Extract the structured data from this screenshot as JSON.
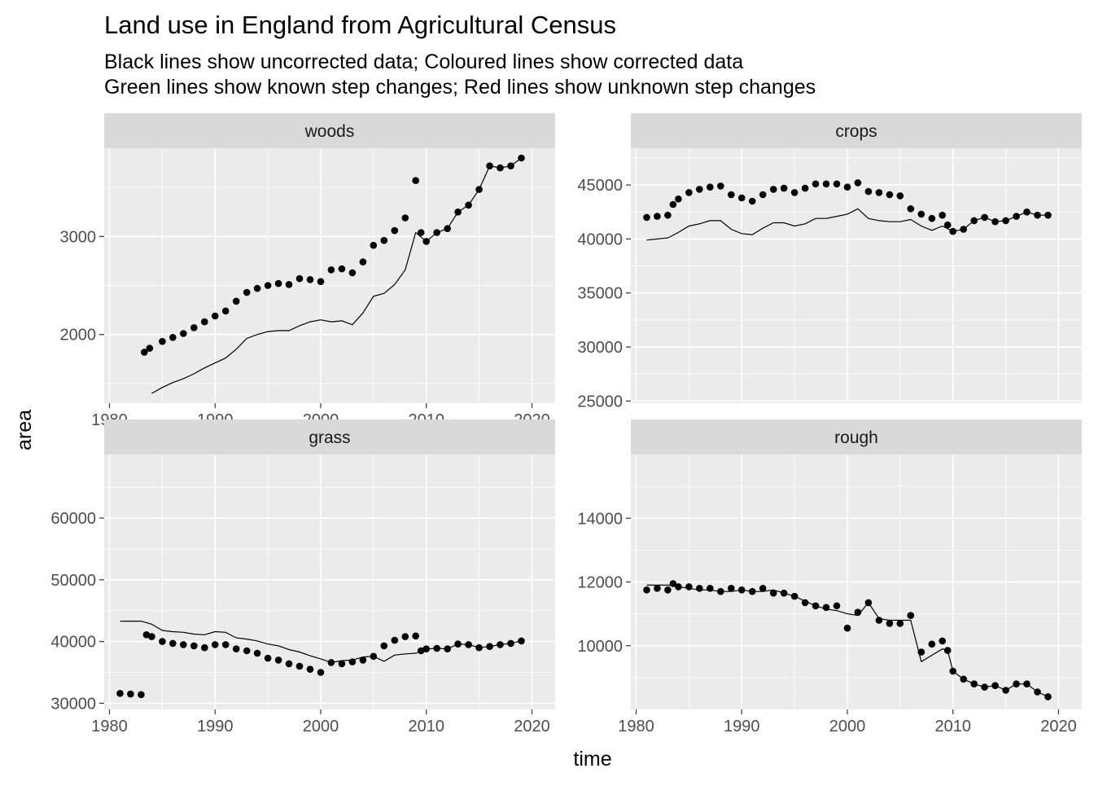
{
  "chart_data": {
    "type": "scatter",
    "title": "Land use in England from Agricultural Census",
    "subtitle_lines": [
      "Black lines show uncorrected data; Coloured lines show corrected data",
      "Green lines show known step changes; Red lines show unknown step changes"
    ],
    "xlabel": "time",
    "ylabel": "area",
    "xlim": [
      1979.5,
      2022.2
    ],
    "x_ticks": [
      1980,
      1990,
      2000,
      2010,
      2020
    ],
    "grid": true,
    "facets": [
      {
        "label": "woods",
        "ylim": [
          1300,
          3900
        ],
        "y_ticks": [
          2000,
          3000
        ],
        "series": [
          {
            "style": "points",
            "x": [
              1983.3,
              1983.8,
              1985,
              1986,
              1987,
              1988,
              1989,
              1990,
              1991,
              1992,
              1993,
              1994,
              1995,
              1996,
              1997,
              1998,
              1999,
              2000,
              2001,
              2002,
              2003,
              2004,
              2005,
              2006,
              2007,
              2008,
              2009,
              2009.5,
              2010,
              2011,
              2012,
              2013,
              2014,
              2015,
              2016,
              2017,
              2018,
              2019
            ],
            "y": [
              1820,
              1860,
              1930,
              1970,
              2010,
              2070,
              2130,
              2190,
              2240,
              2340,
              2430,
              2470,
              2500,
              2520,
              2510,
              2570,
              2560,
              2540,
              2660,
              2670,
              2630,
              2740,
              2910,
              2960,
              3060,
              3190,
              3570,
              3040,
              2950,
              3040,
              3080,
              3250,
              3320,
              3480,
              3720,
              3700,
              3720,
              3800
            ]
          },
          {
            "style": "line",
            "x": [
              1984,
              1985,
              1986,
              1987,
              1988,
              1989,
              1990,
              1991,
              1992,
              1993,
              1994,
              1995,
              1996,
              1997,
              1998,
              1999,
              2000,
              2001,
              2002,
              2003,
              2004,
              2005,
              2006,
              2007,
              2008,
              2009,
              2010,
              2011,
              2012,
              2013,
              2014,
              2015,
              2016,
              2017,
              2018,
              2019
            ],
            "y": [
              1400,
              1460,
              1510,
              1550,
              1600,
              1660,
              1710,
              1760,
              1850,
              1960,
              2000,
              2030,
              2040,
              2040,
              2090,
              2130,
              2150,
              2130,
              2140,
              2100,
              2220,
              2390,
              2420,
              2510,
              2660,
              3040,
              2950,
              3040,
              3080,
              3250,
              3320,
              3480,
              3720,
              3700,
              3720,
              3800
            ]
          }
        ]
      },
      {
        "label": "crops",
        "ylim": [
          24800,
          48400
        ],
        "y_ticks": [
          25000,
          30000,
          35000,
          40000,
          45000
        ],
        "series": [
          {
            "style": "points",
            "x": [
              1981,
              1982,
              1983,
              1983.5,
              1984,
              1985,
              1986,
              1987,
              1988,
              1989,
              1990,
              1991,
              1992,
              1993,
              1994,
              1995,
              1996,
              1997,
              1998,
              1999,
              2000,
              2001,
              2002,
              2003,
              2004,
              2005,
              2006,
              2007,
              2008,
              2009,
              2009.5,
              2010,
              2011,
              2012,
              2013,
              2014,
              2015,
              2016,
              2017,
              2018,
              2019
            ],
            "y": [
              42000,
              42100,
              42200,
              43200,
              43700,
              44300,
              44600,
              44800,
              44900,
              44100,
              43800,
              43500,
              44100,
              44600,
              44700,
              44300,
              44700,
              45100,
              45100,
              45100,
              44800,
              45200,
              44400,
              44300,
              44100,
              44000,
              42800,
              42300,
              41900,
              42200,
              41300,
              40700,
              40900,
              41700,
              42000,
              41600,
              41700,
              42100,
              42500,
              42200,
              42200
            ]
          },
          {
            "style": "line",
            "x": [
              1981,
              1982,
              1983,
              1984,
              1985,
              1986,
              1987,
              1988,
              1989,
              1990,
              1991,
              1992,
              1993,
              1994,
              1995,
              1996,
              1997,
              1998,
              1999,
              2000,
              2001,
              2002,
              2003,
              2004,
              2005,
              2006,
              2007,
              2008,
              2009,
              2010,
              2011,
              2012,
              2013,
              2014,
              2015,
              2016,
              2017,
              2018,
              2019
            ],
            "y": [
              39900,
              40000,
              40100,
              40600,
              41200,
              41400,
              41700,
              41700,
              40900,
              40500,
              40400,
              41000,
              41500,
              41500,
              41200,
              41400,
              41900,
              41900,
              42100,
              42300,
              42800,
              41900,
              41700,
              41600,
              41600,
              41800,
              41200,
              40800,
              41200,
              40700,
              40900,
              41700,
              42000,
              41600,
              41700,
              42100,
              42500,
              42200,
              42200
            ]
          }
        ]
      },
      {
        "label": "grass",
        "ylim": [
          29000,
          70300
        ],
        "y_ticks": [
          30000,
          40000,
          50000,
          60000
        ],
        "series": [
          {
            "style": "points",
            "x": [
              1981,
              1982,
              1983,
              1983.5,
              1984,
              1985,
              1986,
              1987,
              1988,
              1989,
              1990,
              1991,
              1992,
              1993,
              1994,
              1995,
              1996,
              1997,
              1998,
              1999,
              2000,
              2001,
              2002,
              2003,
              2004,
              2005,
              2006,
              2007,
              2008,
              2009,
              2009.5,
              2010,
              2011,
              2012,
              2013,
              2014,
              2015,
              2016,
              2017,
              2018,
              2019
            ],
            "y": [
              31600,
              31500,
              31400,
              41100,
              40800,
              40000,
              39700,
              39500,
              39300,
              39000,
              39500,
              39500,
              38800,
              38500,
              38100,
              37300,
              37000,
              36400,
              36000,
              35500,
              35000,
              36600,
              36400,
              36700,
              37000,
              37600,
              39300,
              40200,
              40800,
              40900,
              38500,
              38800,
              38900,
              38800,
              39600,
              39500,
              39000,
              39200,
              39500,
              39700,
              40100
            ]
          },
          {
            "style": "line",
            "x": [
              1981,
              1982,
              1983,
              1984,
              1985,
              1986,
              1987,
              1988,
              1989,
              1990,
              1991,
              1992,
              1993,
              1994,
              1995,
              1996,
              1997,
              1998,
              1999,
              2000,
              2001,
              2002,
              2003,
              2004,
              2005,
              2006,
              2007,
              2008,
              2009,
              2010,
              2011,
              2012,
              2013,
              2014,
              2015,
              2016,
              2017,
              2018,
              2019
            ],
            "y": [
              43300,
              43300,
              43300,
              42800,
              41800,
              41600,
              41500,
              41200,
              41100,
              41600,
              41500,
              40600,
              40400,
              40100,
              39600,
              39300,
              38700,
              38300,
              37700,
              37200,
              36600,
              36900,
              37000,
              37500,
              37600,
              36800,
              37800,
              38000,
              38100,
              38800,
              38900,
              38800,
              39600,
              39500,
              39000,
              39200,
              39500,
              39700,
              40100
            ]
          }
        ]
      },
      {
        "label": "rough",
        "ylim": [
          8000,
          16000
        ],
        "y_ticks": [
          10000,
          12000,
          14000
        ],
        "series": [
          {
            "style": "points",
            "x": [
              1981,
              1982,
              1983,
              1983.5,
              1984,
              1985,
              1986,
              1987,
              1988,
              1989,
              1990,
              1991,
              1992,
              1993,
              1994,
              1995,
              1996,
              1997,
              1998,
              1999,
              2000,
              2001,
              2002,
              2003,
              2004,
              2005,
              2006,
              2007,
              2008,
              2009,
              2009.5,
              2010,
              2011,
              2012,
              2013,
              2014,
              2015,
              2016,
              2017,
              2018,
              2019
            ],
            "y": [
              11750,
              11800,
              11750,
              11950,
              11850,
              11850,
              11800,
              11800,
              11700,
              11800,
              11750,
              11700,
              11800,
              11650,
              11650,
              11550,
              11350,
              11250,
              11200,
              11250,
              10550,
              11050,
              11350,
              10800,
              10700,
              10700,
              10950,
              9800,
              10050,
              10150,
              9850,
              9200,
              8950,
              8800,
              8700,
              8750,
              8600,
              8800,
              8800,
              8550,
              8400
            ]
          },
          {
            "style": "line",
            "x": [
              1981,
              1982,
              1983,
              1984,
              1985,
              1986,
              1987,
              1988,
              1989,
              1990,
              1991,
              1992,
              1993,
              1994,
              1995,
              1996,
              1997,
              1998,
              1999,
              2000,
              2001,
              2002,
              2003,
              2004,
              2005,
              2006,
              2007,
              2008,
              2009,
              2009.5,
              2010,
              2011,
              2012,
              2013,
              2014,
              2015,
              2016,
              2017,
              2018,
              2019
            ],
            "y": [
              11900,
              11900,
              11900,
              11850,
              11800,
              11750,
              11750,
              11700,
              11700,
              11750,
              11700,
              11700,
              11750,
              11650,
              11550,
              11400,
              11250,
              11150,
              11100,
              11000,
              10950,
              11350,
              10850,
              10800,
              10800,
              10800,
              9500,
              9700,
              9900,
              9850,
              9200,
              8950,
              8800,
              8700,
              8750,
              8600,
              8800,
              8800,
              8550,
              8400
            ]
          }
        ]
      }
    ]
  }
}
